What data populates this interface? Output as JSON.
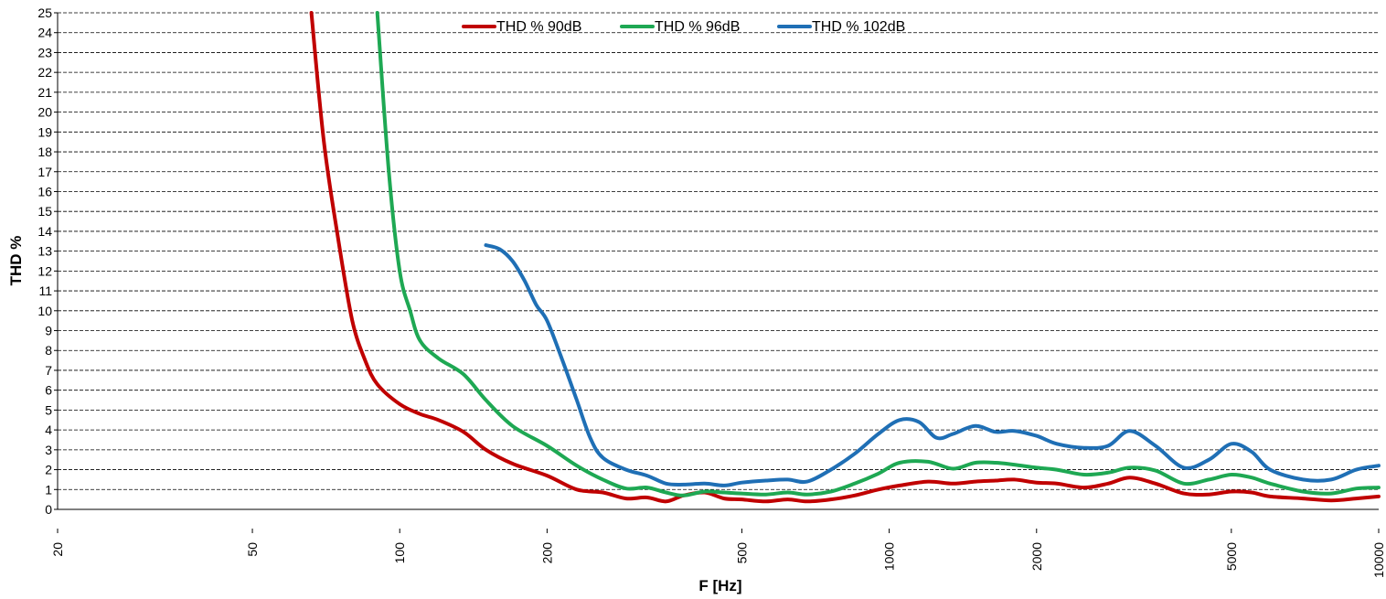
{
  "chart_data": {
    "type": "line",
    "title": "",
    "xlabel": "F [Hz]",
    "ylabel": "THD %",
    "x_scale": "log",
    "xlim": [
      20,
      10000
    ],
    "ylim": [
      0,
      25
    ],
    "x_ticks": [
      20,
      50,
      100,
      200,
      500,
      1000,
      2000,
      5000,
      10000
    ],
    "x_tick_labels": [
      "20",
      "50",
      "100",
      "200",
      "500",
      "1000",
      "2000",
      "5000",
      "10000"
    ],
    "y_ticks": [
      0,
      1,
      2,
      3,
      4,
      5,
      6,
      7,
      8,
      9,
      10,
      11,
      12,
      13,
      14,
      15,
      16,
      17,
      18,
      19,
      20,
      21,
      22,
      23,
      24,
      25
    ],
    "grid": "horizontal dashed",
    "legend_position": "top-center",
    "series": [
      {
        "name": "THD % 90dB",
        "color": "#c00000",
        "x": [
          66,
          70,
          75,
          80,
          85,
          90,
          100,
          110,
          120,
          135,
          150,
          170,
          200,
          230,
          260,
          290,
          320,
          350,
          380,
          420,
          460,
          500,
          560,
          620,
          680,
          760,
          850,
          950,
          1050,
          1200,
          1350,
          1500,
          1650,
          1800,
          2000,
          2200,
          2500,
          2800,
          3100,
          3500,
          4000,
          4500,
          5000,
          5500,
          6000,
          7000,
          8000,
          9000,
          10000
        ],
        "y": [
          25,
          18.5,
          13.5,
          9.5,
          7.5,
          6.3,
          5.3,
          4.8,
          4.5,
          3.9,
          3.0,
          2.3,
          1.7,
          1.0,
          0.85,
          0.55,
          0.6,
          0.4,
          0.7,
          0.85,
          0.55,
          0.5,
          0.4,
          0.5,
          0.4,
          0.5,
          0.7,
          1.0,
          1.2,
          1.4,
          1.3,
          1.4,
          1.45,
          1.5,
          1.35,
          1.3,
          1.1,
          1.3,
          1.6,
          1.3,
          0.8,
          0.75,
          0.9,
          0.85,
          0.65,
          0.55,
          0.45,
          0.55,
          0.65
        ]
      },
      {
        "name": "THD % 96dB",
        "color": "#1ea853",
        "x": [
          90,
          95,
          100,
          105,
          110,
          120,
          135,
          150,
          170,
          200,
          230,
          260,
          290,
          320,
          350,
          380,
          420,
          460,
          500,
          560,
          620,
          680,
          760,
          850,
          950,
          1050,
          1200,
          1350,
          1500,
          1650,
          1800,
          2000,
          2200,
          2500,
          2800,
          3100,
          3500,
          4000,
          4500,
          5000,
          5500,
          6000,
          7000,
          8000,
          9000,
          10000
        ],
        "y": [
          25,
          17,
          12,
          10,
          8.5,
          7.6,
          6.8,
          5.5,
          4.2,
          3.2,
          2.2,
          1.5,
          1.05,
          1.1,
          0.85,
          0.7,
          0.9,
          0.85,
          0.8,
          0.75,
          0.85,
          0.75,
          0.9,
          1.3,
          1.8,
          2.35,
          2.4,
          2.05,
          2.35,
          2.35,
          2.25,
          2.1,
          2.0,
          1.75,
          1.85,
          2.1,
          1.95,
          1.3,
          1.5,
          1.75,
          1.6,
          1.3,
          0.9,
          0.8,
          1.05,
          1.1
        ]
      },
      {
        "name": "THD % 102dB",
        "color": "#1f6fb5",
        "x": [
          150,
          160,
          170,
          180,
          190,
          200,
          215,
          230,
          245,
          260,
          290,
          320,
          350,
          380,
          420,
          460,
          500,
          560,
          620,
          680,
          760,
          850,
          950,
          1050,
          1150,
          1250,
          1350,
          1500,
          1650,
          1800,
          2000,
          2200,
          2500,
          2800,
          3100,
          3500,
          4000,
          4500,
          5000,
          5500,
          6000,
          7000,
          8000,
          9000,
          10000
        ],
        "y": [
          13.3,
          13.1,
          12.5,
          11.5,
          10.3,
          9.5,
          7.5,
          5.5,
          3.6,
          2.6,
          2.0,
          1.7,
          1.3,
          1.25,
          1.3,
          1.2,
          1.35,
          1.45,
          1.5,
          1.4,
          2.0,
          2.8,
          3.8,
          4.5,
          4.4,
          3.6,
          3.8,
          4.2,
          3.9,
          3.95,
          3.7,
          3.3,
          3.1,
          3.2,
          3.95,
          3.2,
          2.1,
          2.5,
          3.3,
          2.9,
          2.0,
          1.5,
          1.5,
          2.0,
          2.2
        ]
      }
    ]
  }
}
